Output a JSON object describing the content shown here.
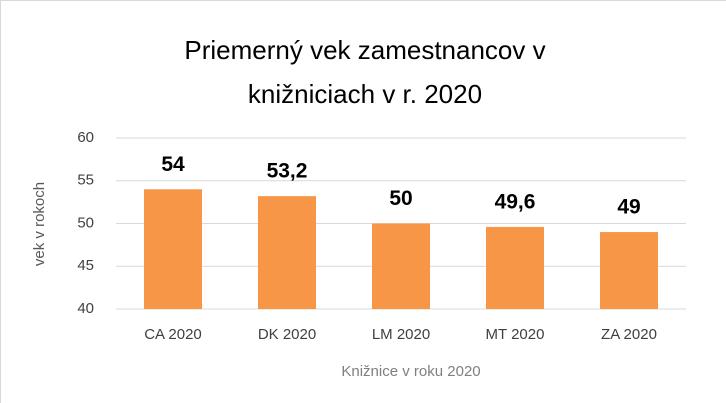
{
  "chart_data": {
    "type": "bar",
    "title": [
      "Priemerný vek zamestnancov v",
      "knižniciach v r. 2020"
    ],
    "categories": [
      "CA 2020",
      "DK 2020",
      "LM 2020",
      "MT 2020",
      "ZA 2020"
    ],
    "values": [
      54,
      53.2,
      50,
      49.6,
      49
    ],
    "value_labels": [
      "54",
      "53,2",
      "50",
      "49,6",
      "49"
    ],
    "color": "#f79646",
    "ylim": [
      40,
      60
    ],
    "yticks": [
      40,
      45,
      50,
      55,
      60
    ],
    "grid": true,
    "y_label": "vek v rokoch",
    "x_label": "Knižnice v roku 2020"
  }
}
